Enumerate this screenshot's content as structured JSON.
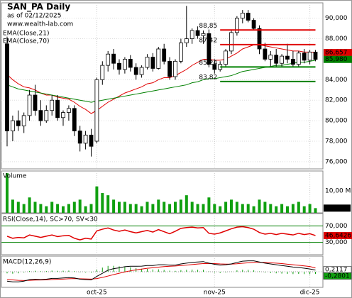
{
  "chart_data": {
    "type": "candlestick",
    "title": "SAN_PA Daily",
    "subtitle": "as of 02/12/2025",
    "source": "www.wealth-lab.com",
    "categories": [
      null,
      null,
      null,
      null,
      null,
      null,
      null,
      null,
      null,
      null,
      null,
      null,
      null,
      null,
      null,
      null,
      "oct-25",
      null,
      null,
      null,
      null,
      null,
      null,
      null,
      null,
      null,
      null,
      null,
      null,
      null,
      null,
      null,
      null,
      null,
      null,
      null,
      null,
      "nov-25",
      null,
      null,
      null,
      null,
      null,
      null,
      null,
      null,
      null,
      null,
      null,
      null,
      null,
      null,
      null,
      null,
      "dic-25",
      null
    ],
    "open": [
      87.5,
      79,
      80,
      79.5,
      80.5,
      82.5,
      81,
      80,
      81,
      82,
      80.3,
      80.8,
      81.2,
      79,
      77.8,
      78.6,
      78,
      84,
      85.4,
      86.5,
      85.6,
      85,
      86,
      85.2,
      84.5,
      85.2,
      86.2,
      85.1,
      87,
      85.8,
      84.3,
      85.8,
      87.6,
      88,
      88.8,
      88.3,
      88.5,
      85.5,
      85,
      85.5,
      86.8,
      88.6,
      90,
      90.5,
      89.8,
      89,
      87,
      86,
      86.4,
      85.6,
      86.3,
      86,
      85.5,
      86.6,
      85.9,
      86.7
    ],
    "high": [
      88.2,
      80.5,
      81,
      80.8,
      83,
      83.5,
      82,
      81.5,
      82.5,
      82.5,
      81,
      81.5,
      81.5,
      79.5,
      79,
      79.2,
      84.2,
      85.8,
      86.8,
      87,
      86,
      86.2,
      86.4,
      85.6,
      85.4,
      86.5,
      86.6,
      87.2,
      87.5,
      86.2,
      86,
      88,
      91.2,
      89,
      89.2,
      88.8,
      88.9,
      86,
      85.8,
      87,
      88.8,
      90.2,
      90.8,
      90.8,
      90,
      89.3,
      87.6,
      86.8,
      87,
      86.5,
      87.5,
      86.8,
      86.8,
      87,
      86.9,
      86.9
    ],
    "low": [
      77.5,
      78,
      79,
      78.8,
      80,
      80.5,
      79.5,
      79.8,
      80.5,
      80,
      79.5,
      80,
      78.5,
      77,
      77.2,
      76.5,
      77.8,
      83.5,
      84.8,
      85,
      84.5,
      84.6,
      84.8,
      84,
      84.2,
      85,
      84.8,
      85,
      85.5,
      84,
      84,
      85.6,
      87.2,
      87.5,
      88,
      87.5,
      85.2,
      84.6,
      84.8,
      85.2,
      86.5,
      88.3,
      89.5,
      89.6,
      88.8,
      86.5,
      85.8,
      85.2,
      85.3,
      85.3,
      85.6,
      85.2,
      85.3,
      85.6,
      85.5,
      85.8
    ],
    "close": [
      79,
      80,
      79.5,
      80.5,
      82.5,
      81,
      80,
      81,
      82,
      80.3,
      80.8,
      81.2,
      79,
      77.8,
      78.6,
      77.5,
      84,
      85.4,
      86.5,
      85.6,
      85,
      86,
      85.2,
      84.5,
      85.2,
      86.2,
      85.1,
      87,
      85.8,
      84.3,
      85.8,
      87.6,
      88,
      88.8,
      88.3,
      88.5,
      85.5,
      85,
      85.5,
      86.8,
      88.6,
      90,
      90.5,
      89.8,
      89,
      87,
      86,
      86.4,
      85.6,
      86.3,
      86,
      85.5,
      86.6,
      85.9,
      86.7,
      85.98
    ],
    "ylim": [
      75.3,
      91.5
    ],
    "yticks": [
      {
        "value": 76,
        "label": "76,000"
      },
      {
        "value": 78,
        "label": "78,000"
      },
      {
        "value": 80,
        "label": "80,000"
      },
      {
        "value": 82,
        "label": "82,000"
      },
      {
        "value": 84,
        "label": "84,000"
      },
      {
        "value": 88,
        "label": "88,000"
      },
      {
        "value": 90,
        "label": "90,000"
      }
    ],
    "series": [
      {
        "name": "EMA(Close,21)",
        "color": "#e00000",
        "values": [
          84.5,
          84.0,
          83.6,
          83.3,
          83.2,
          83.0,
          82.7,
          82.5,
          82.5,
          82.3,
          82.2,
          82.1,
          81.8,
          81.4,
          81.1,
          80.7,
          81.0,
          81.4,
          81.8,
          82.1,
          82.4,
          82.7,
          82.9,
          83.1,
          83.3,
          83.6,
          83.7,
          84.0,
          84.2,
          84.2,
          84.4,
          84.7,
          85.0,
          85.4,
          85.7,
          86.0,
          86.0,
          85.9,
          85.9,
          86.0,
          86.3,
          86.6,
          87.0,
          87.2,
          87.4,
          87.4,
          87.3,
          87.2,
          87.1,
          87.0,
          86.9,
          86.8,
          86.8,
          86.7,
          86.7,
          86.657
        ]
      },
      {
        "name": "EMA(Close,70)",
        "color": "#008000",
        "values": [
          83.5,
          83.3,
          83.1,
          83.0,
          82.9,
          82.8,
          82.7,
          82.6,
          82.5,
          82.4,
          82.3,
          82.2,
          82.1,
          82.0,
          81.9,
          81.8,
          81.9,
          82.0,
          82.1,
          82.2,
          82.3,
          82.4,
          82.5,
          82.6,
          82.7,
          82.8,
          82.9,
          83.0,
          83.1,
          83.2,
          83.3,
          83.4,
          83.5,
          83.7,
          83.8,
          84.0,
          84.1,
          84.1,
          84.2,
          84.3,
          84.4,
          84.6,
          84.8,
          84.9,
          85.0,
          85.1,
          85.2,
          85.3,
          85.4,
          85.4,
          85.5,
          85.6,
          85.7,
          85.7,
          85.8,
          85.9
        ]
      }
    ],
    "levels": [
      {
        "value": 88.85,
        "label": "88,85",
        "color": "#e00000"
      },
      {
        "value": 87.42,
        "label": "87,42",
        "color": "#e00000"
      },
      {
        "value": 85.24,
        "label": "85,24",
        "color": "#008000"
      },
      {
        "value": 83.82,
        "label": "83,82",
        "color": "#008000"
      }
    ],
    "price_labels": [
      {
        "value": 86.657,
        "label": "86,657",
        "color": "#e00000"
      },
      {
        "value": 85.98,
        "label": "85,980",
        "color": "#008000"
      }
    ],
    "volume": {
      "label": "Volume",
      "color": "#10a010",
      "values": [
        18,
        6,
        5,
        4,
        7,
        5,
        4,
        3,
        5,
        4,
        3,
        4,
        5,
        6,
        3,
        4,
        12,
        9,
        8,
        6,
        5,
        5,
        4,
        4,
        3,
        5,
        4,
        6,
        5,
        4,
        5,
        6,
        8,
        5,
        4,
        4,
        7,
        4,
        3,
        5,
        6,
        5,
        4,
        4,
        3,
        6,
        5,
        4,
        3,
        4,
        3,
        4,
        5,
        3,
        4,
        2.15
      ],
      "ylim": [
        0,
        19
      ],
      "yticks": [
        {
          "value": 10,
          "label": "10,00 M"
        }
      ],
      "last_label": {
        "value": 2.15,
        "label": "2,15 M"
      }
    },
    "rsi": {
      "label": "RSI(Close,14), SC>70, SV<30",
      "color": "#e00000",
      "band_color": "#008000",
      "values": [
        45,
        40,
        42,
        41,
        48,
        45,
        42,
        45,
        48,
        44,
        46,
        47,
        40,
        36,
        40,
        38,
        58,
        62,
        65,
        60,
        57,
        60,
        56,
        53,
        56,
        59,
        55,
        61,
        56,
        51,
        57,
        64,
        66,
        67,
        65,
        66,
        52,
        50,
        53,
        58,
        63,
        67,
        68,
        66,
        62,
        54,
        50,
        52,
        49,
        52,
        50,
        48,
        52,
        49,
        51,
        46.6426
      ],
      "ylim": [
        0,
        100
      ],
      "yticks": [
        {
          "value": 70,
          "label": "70,000"
        },
        {
          "value": 30,
          "label": "30,000"
        }
      ],
      "last_label": {
        "value": 46.6426,
        "label": "46,6426"
      }
    },
    "macd": {
      "label": "MACD(12,26,9)",
      "macd": [
        -1.2,
        -1.3,
        -1.3,
        -1.2,
        -1.0,
        -0.95,
        -1.0,
        -0.95,
        -0.85,
        -0.85,
        -0.8,
        -0.75,
        -0.8,
        -0.95,
        -1.0,
        -1.05,
        -0.6,
        -0.2,
        0.2,
        0.4,
        0.5,
        0.65,
        0.7,
        0.7,
        0.72,
        0.8,
        0.8,
        0.9,
        0.9,
        0.85,
        0.85,
        1.0,
        1.1,
        1.2,
        1.25,
        1.3,
        1.1,
        0.95,
        0.85,
        0.9,
        1.0,
        1.2,
        1.35,
        1.4,
        1.4,
        1.25,
        1.1,
        1.0,
        0.9,
        0.8,
        0.7,
        0.6,
        0.55,
        0.45,
        0.35,
        0.2117
      ],
      "signal": [
        -1.0,
        -1.05,
        -1.1,
        -1.12,
        -1.1,
        -1.07,
        -1.06,
        -1.04,
        -1.0,
        -0.97,
        -0.94,
        -0.9,
        -0.88,
        -0.9,
        -0.92,
        -0.94,
        -0.87,
        -0.73,
        -0.55,
        -0.36,
        -0.19,
        -0.02,
        0.12,
        0.24,
        0.34,
        0.44,
        0.51,
        0.59,
        0.66,
        0.71,
        0.74,
        0.79,
        0.85,
        0.92,
        0.99,
        1.05,
        1.06,
        1.04,
        1.0,
        0.98,
        0.98,
        1.02,
        1.09,
        1.15,
        1.2,
        1.21,
        1.19,
        1.15,
        1.1,
        1.04,
        0.97,
        0.9,
        0.83,
        0.75,
        0.67,
        0.4918
      ],
      "histogram": [
        -0.2,
        -0.25,
        -0.2,
        -0.08,
        0.1,
        0.12,
        0.06,
        0.09,
        0.15,
        0.12,
        0.14,
        0.15,
        0.08,
        -0.05,
        -0.08,
        -0.11,
        0.27,
        0.53,
        0.75,
        0.76,
        0.69,
        0.67,
        0.58,
        0.46,
        0.38,
        0.36,
        0.29,
        0.31,
        0.24,
        0.14,
        0.11,
        0.21,
        0.25,
        0.28,
        0.26,
        0.25,
        0.04,
        -0.09,
        -0.15,
        -0.08,
        0.02,
        0.18,
        0.26,
        0.25,
        0.2,
        0.04,
        -0.09,
        -0.15,
        -0.2,
        -0.24,
        -0.27,
        -0.3,
        -0.28,
        -0.3,
        -0.32,
        -0.2801
      ],
      "ylim": [
        -2,
        2
      ],
      "last_labels": [
        {
          "value": 0.2117,
          "label": "0,2117",
          "color": "#ffffff"
        },
        {
          "value": -0.2801,
          "label": "-0,2801",
          "color": "#10a010"
        }
      ]
    }
  }
}
